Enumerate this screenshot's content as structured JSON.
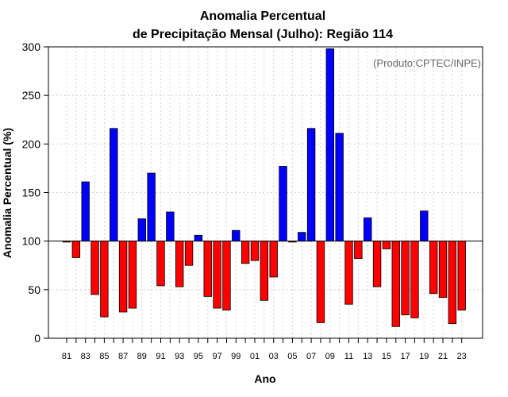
{
  "chart_data": {
    "type": "bar",
    "title": [
      "Anomalia Percentual",
      "de Precipitação Mensal (Julho): Região 114"
    ],
    "xlabel": "Ano",
    "ylabel": "Anomalia Percentual (%)",
    "annotation": "(Produto:CPTEC/INPE)",
    "ylim": [
      0,
      300
    ],
    "yticks": [
      0,
      50,
      100,
      150,
      200,
      250,
      300
    ],
    "baseline": 100,
    "grid": true,
    "colors": {
      "above": "#0000ff",
      "below": "#ff0000",
      "edge": "#000000",
      "grid": "#d3d3d3"
    },
    "xtick_labels": [
      "81",
      "83",
      "85",
      "87",
      "89",
      "91",
      "93",
      "95",
      "97",
      "99",
      "01",
      "03",
      "05",
      "07",
      "09",
      "11",
      "13",
      "15",
      "17",
      "19",
      "21",
      "23"
    ],
    "categories": [
      "1981",
      "1982",
      "1983",
      "1984",
      "1985",
      "1986",
      "1987",
      "1988",
      "1989",
      "1990",
      "1991",
      "1992",
      "1993",
      "1994",
      "1995",
      "1996",
      "1997",
      "1998",
      "1999",
      "2000",
      "2001",
      "2002",
      "2003",
      "2004",
      "2005",
      "2006",
      "2007",
      "2008",
      "2009",
      "2010",
      "2011",
      "2012",
      "2013",
      "2014",
      "2015",
      "2016",
      "2017",
      "2018",
      "2019",
      "2020",
      "2021",
      "2022",
      "2023"
    ],
    "values": [
      99,
      83,
      161,
      45,
      22,
      216,
      27,
      31,
      123,
      170,
      54,
      130,
      53,
      75,
      106,
      43,
      31,
      29,
      111,
      77,
      80,
      39,
      63,
      177,
      99,
      109,
      216,
      16,
      298,
      211,
      35,
      82,
      124,
      53,
      92,
      12,
      24,
      21,
      131,
      46,
      42,
      15,
      29
    ]
  }
}
